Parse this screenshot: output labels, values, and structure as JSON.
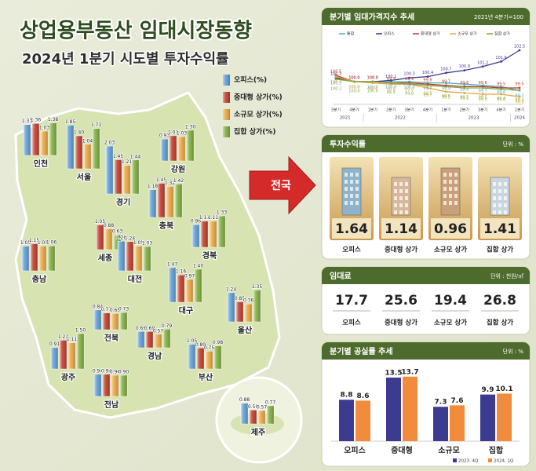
{
  "header": {
    "title": "상업용부동산 임대시장동향",
    "subtitle": "2024년 1분기 시도별 투자수익률"
  },
  "nationwide": "전국",
  "chart_data": [
    {
      "type": "bar",
      "categories": [
        "인천",
        "서울",
        "경기",
        "강원",
        "충북",
        "세종",
        "충남",
        "대전",
        "경북",
        "대구",
        "울산",
        "전북",
        "광주",
        "경남",
        "부산",
        "전남",
        "제주"
      ],
      "ylim": [
        0,
        2.2
      ],
      "series": [
        {
          "name": "오피스(%)",
          "color": "#5b9bd5",
          "values": [
            1.31,
            1.85,
            2.03,
            0.93,
            1.18,
            null,
            1.05,
            1.26,
            0.96,
            1.47,
            1.24,
            0.84,
            0.91,
            0.69,
            1.05,
            0.94,
            0.88
          ],
          "value_labels": [
            "1.31",
            "1.85",
            "2.03",
            "0.93",
            "1.18",
            null,
            "1.05",
            "1.26",
            "0.96",
            "1.47",
            "1.24",
            "0.84",
            "0.91",
            "0.69",
            "1.05",
            "0.94",
            "0.88"
          ]
        },
        {
          "name": "중대형 상가(%)",
          "color": "#c0392b",
          "values": [
            1.36,
            1.4,
            1.45,
            1.07,
            1.45,
            1.05,
            1.15,
            1.24,
            1.11,
            1.16,
            0.85,
            0.71,
            1.22,
            0.69,
            0.89,
            0.94,
            0.59
          ],
          "value_labels": [
            "1.36",
            "1.40",
            "1.45",
            "1.07",
            "1.45",
            "1.05",
            "1.15",
            "1.24",
            "1.11",
            "1.16",
            "0.85",
            "0.71",
            "1.22",
            "0.69",
            "0.89",
            "0.94",
            "0.59"
          ]
        },
        {
          "name": "소규모 상가(%)",
          "color": "#e8a33c",
          "values": [
            1.03,
            1.04,
            1.21,
            1.03,
            1.32,
            0.88,
            1.05,
            1.05,
            1.11,
            0.97,
            0.76,
            0.69,
            1.11,
            0.57,
            0.75,
            0.9,
            0.57
          ],
          "value_labels": [
            "1.03",
            "1.04",
            "1.21",
            "1.03",
            "1.32",
            "0.88",
            "1.05",
            "1.05",
            "1.11",
            "0.97",
            "0.76",
            "0.69",
            "1.11",
            "0.57",
            "0.75",
            "0.90",
            "0.57"
          ]
        },
        {
          "name": "집합 상가(%)",
          "color": "#7cab3c",
          "values": [
            1.38,
            1.71,
            1.44,
            1.3,
            1.42,
            0.63,
            1.06,
            1.03,
            1.33,
            1.4,
            1.35,
            0.73,
            1.5,
            0.79,
            0.98,
            0.9,
            0.77
          ],
          "value_labels": [
            "1.38",
            "1.71",
            "1.44",
            "1.30",
            "1.42",
            "0.63",
            "1.06",
            "1.03",
            "1.33",
            "1.40",
            "1.35",
            "0.73",
            "1.50",
            "0.79",
            "0.98",
            "0.90",
            "0.77"
          ]
        }
      ]
    },
    {
      "type": "line",
      "title": "분기별 임대가격지수 추세",
      "subtitle": "2021년 4분기=100",
      "categories": [
        "3분기",
        "4분기",
        "1분기",
        "2분기",
        "3분기",
        "4분기",
        "1분기",
        "2분기",
        "3분기",
        "4분기",
        "1분기"
      ],
      "years": [
        "2021",
        "2022",
        "2023",
        "2024"
      ],
      "ylim": [
        98.5,
        103
      ],
      "series": [
        {
          "name": "통합",
          "color": "#4bacc6",
          "values": [
            100.3,
            100.0,
            100.0,
            100.0,
            100.0,
            99.9,
            99.9,
            99.8,
            99.7,
            99.6,
            99.3
          ],
          "value_labels": [
            "100.3",
            "100.0",
            "100.0",
            "100.0",
            "100.0",
            "99.9",
            "99.9",
            "99.8",
            "99.7",
            "99.6",
            "99.3"
          ]
        },
        {
          "name": "오피스",
          "color": "#3b3b8f",
          "values": [
            100.3,
            100.0,
            100.0,
            100.1,
            100.3,
            100.4,
            100.7,
            100.9,
            101.2,
            101.6,
            102.5
          ],
          "value_labels": [
            "100.3",
            "100.0",
            "100.0",
            "100.1",
            "100.3",
            "100.4",
            "100.7",
            "100.9",
            "101.2",
            "101.6",
            "102.5"
          ]
        },
        {
          "name": "중대형 상가",
          "color": "#c0392b",
          "values": [
            100.5,
            100.0,
            100.0,
            99.9,
            99.9,
            99.8,
            99.7,
            99.6,
            99.6,
            99.5,
            99.5
          ],
          "value_labels": [
            "100.5",
            "100.0",
            "100.0",
            "99.9",
            "99.9",
            "99.8",
            "99.7",
            "99.6",
            "99.6",
            "99.5",
            "99.5"
          ]
        },
        {
          "name": "소규모 상가",
          "color": "#e8a33c",
          "values": [
            100.4,
            100.0,
            99.9,
            99.8,
            99.8,
            99.5,
            99.2,
            99.1,
            99.0,
            99.0,
            98.8
          ],
          "value_labels": [
            "100.4",
            "100.0",
            "99.9",
            "99.8",
            "99.8",
            "99.5",
            "99.2",
            "99.1",
            "99.0",
            "99.0",
            "98.8"
          ]
        },
        {
          "name": "집합 상가",
          "color": "#7cab3c",
          "values": [
            100.2,
            100.0,
            100.0,
            99.9,
            99.8,
            99.7,
            99.6,
            99.5,
            99.5,
            99.4,
            99.3
          ],
          "value_labels": [
            "100.2",
            "100.0",
            "100.0",
            "99.9",
            "99.8",
            "99.7",
            "99.6",
            "99.5",
            "99.5",
            "99.4",
            "99.3"
          ]
        }
      ]
    },
    {
      "type": "bar",
      "title": "분기별 공실률 추세",
      "unit": "단위 : %",
      "categories": [
        "오피스",
        "중대형",
        "소규모",
        "집합"
      ],
      "ylim": [
        0,
        15
      ],
      "series": [
        {
          "name": "2023. 4Q",
          "color": "#3b3b8f",
          "values": [
            8.8,
            13.5,
            7.3,
            9.9
          ]
        },
        {
          "name": "2024. 1Q",
          "color": "#f08c3c",
          "values": [
            8.6,
            13.7,
            7.6,
            10.1
          ]
        }
      ]
    }
  ],
  "yield": {
    "title": "투자수익률",
    "unit": "단위 : %",
    "items": [
      {
        "label": "오피스",
        "value": 1.64
      },
      {
        "label": "중대형 상가",
        "value": 1.14
      },
      {
        "label": "소규모 상가",
        "value": 0.96
      },
      {
        "label": "집합 상가",
        "value": 1.41
      }
    ]
  },
  "rent": {
    "title": "임대료",
    "unit": "단위 : 천원/㎡",
    "items": [
      {
        "label": "오피스",
        "value": 17.7
      },
      {
        "label": "중대형 상가",
        "value": 25.6
      },
      {
        "label": "소규모 상가",
        "value": 19.4
      },
      {
        "label": "집합 상가",
        "value": 26.8
      }
    ]
  }
}
